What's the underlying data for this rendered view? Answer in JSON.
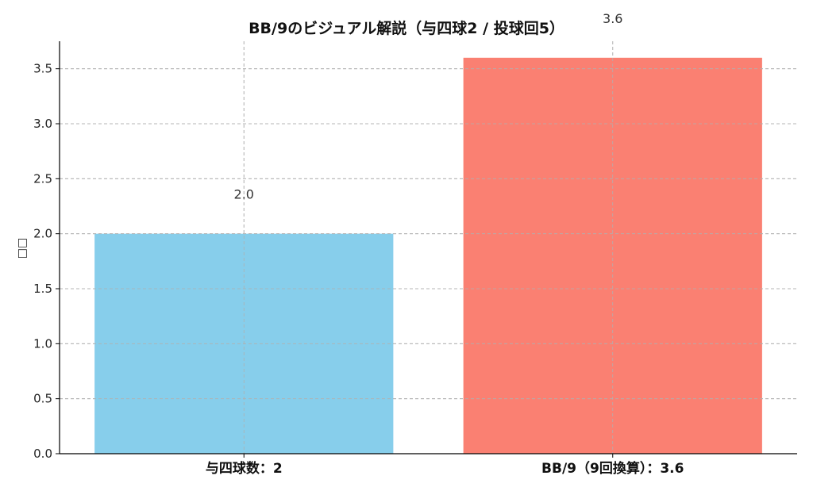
{
  "chart_data": {
    "type": "bar",
    "title": "BB/9のビジュアル解説（与四球2 / 投球回5）",
    "xlabel": "",
    "ylabel": "□□",
    "categories": [
      "与四球数：2",
      "BB/9（9回換算）：3.6"
    ],
    "values": [
      2.0,
      3.6
    ],
    "data_labels": [
      "2.0",
      "3.6"
    ],
    "colors": [
      "#87CEEB",
      "#FA8072"
    ],
    "ylim": [
      0,
      3.75
    ],
    "yticks": [
      0.0,
      0.5,
      1.0,
      1.5,
      2.0,
      2.5,
      3.0,
      3.5
    ],
    "ytick_labels": [
      "0.0",
      "0.5",
      "1.0",
      "1.5",
      "2.0",
      "2.5",
      "3.0",
      "3.5"
    ],
    "grid": true,
    "legend": "none"
  }
}
